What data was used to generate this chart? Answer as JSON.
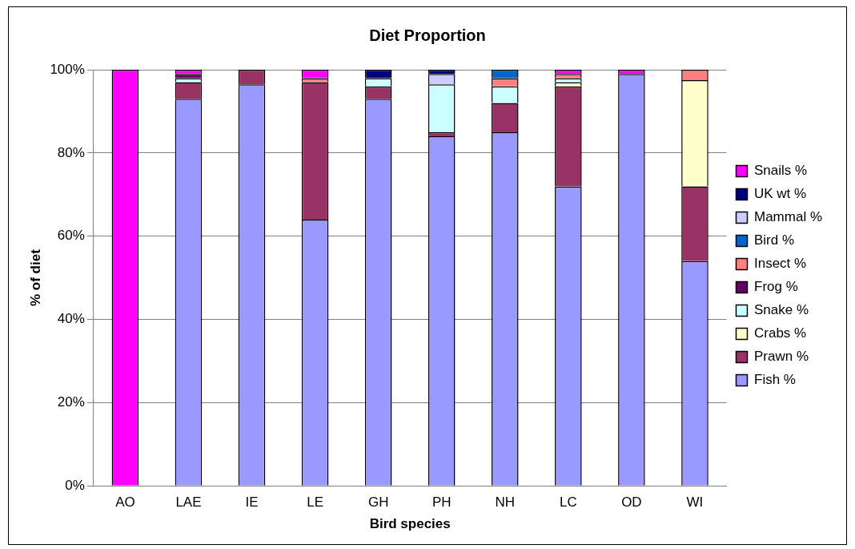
{
  "chart_data": {
    "type": "bar",
    "title": "Diet Proportion",
    "xlabel": "Bird species",
    "ylabel": "% of diet",
    "stacked": true,
    "legend": "right",
    "grid": "y",
    "categories": [
      "AO",
      "LAE",
      "IE",
      "LE",
      "GH",
      "PH",
      "NH",
      "LC",
      "OD",
      "WI"
    ],
    "ylim": [
      0,
      100
    ],
    "yticks": [
      {
        "value": 0,
        "label": "0%"
      },
      {
        "value": 20,
        "label": "20%"
      },
      {
        "value": 40,
        "label": "40%"
      },
      {
        "value": 60,
        "label": "60%"
      },
      {
        "value": 80,
        "label": "80%"
      },
      {
        "value": 100,
        "label": "100%"
      }
    ],
    "series": [
      {
        "name": "Fish %",
        "color": "#9999ff",
        "values": [
          0,
          93,
          96.5,
          64,
          93,
          84,
          85,
          72,
          99,
          54
        ]
      },
      {
        "name": "Prawn %",
        "color": "#993366",
        "values": [
          0,
          4,
          3.5,
          33,
          3,
          1,
          7,
          24,
          0,
          18
        ]
      },
      {
        "name": "Crabs %",
        "color": "#ffffcc",
        "values": [
          0,
          0,
          0,
          0,
          0,
          0,
          0,
          1,
          0,
          25.5
        ]
      },
      {
        "name": "Snake %",
        "color": "#ccffff",
        "values": [
          0,
          1,
          0,
          0,
          2,
          11.5,
          4,
          1,
          0,
          0
        ]
      },
      {
        "name": "Frog %",
        "color": "#660066",
        "values": [
          0,
          1,
          0,
          0,
          0,
          0,
          0,
          0,
          0,
          0
        ]
      },
      {
        "name": "Insect %",
        "color": "#ff8080",
        "values": [
          0,
          0,
          0,
          1,
          0,
          0,
          2,
          1,
          0,
          2.5
        ]
      },
      {
        "name": "Bird %",
        "color": "#0066cc",
        "values": [
          0,
          0,
          0,
          0,
          0,
          0,
          2,
          0,
          0,
          0
        ]
      },
      {
        "name": "Mammal %",
        "color": "#ccccff",
        "values": [
          0,
          0,
          0,
          0,
          0,
          2.5,
          0,
          0,
          0,
          0
        ]
      },
      {
        "name": "UK wt %",
        "color": "#000080",
        "values": [
          0,
          0,
          0,
          0,
          2,
          1,
          0,
          0,
          0,
          0
        ]
      },
      {
        "name": "Snails %",
        "color": "#ff00ff",
        "values": [
          100,
          1,
          0,
          2,
          0,
          0,
          0,
          1,
          1,
          0
        ]
      }
    ]
  }
}
